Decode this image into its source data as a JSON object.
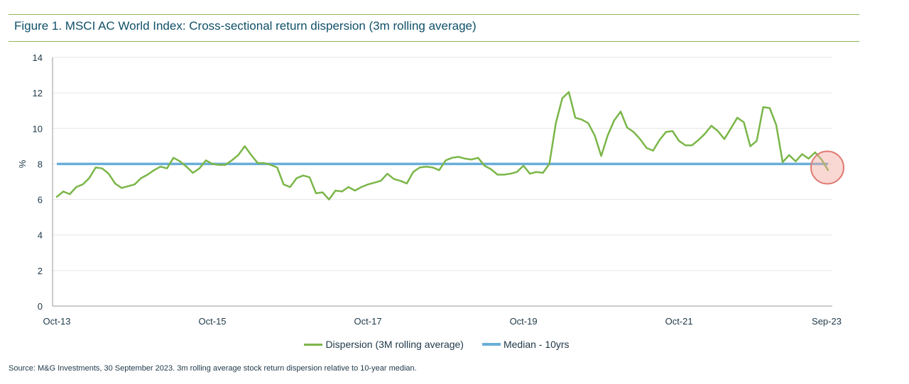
{
  "figure_title": "Figure 1. MSCI AC World Index: Cross-sectional return dispersion (3m rolling average)",
  "source_note": "Source:  M&G Investments, 30 September  2023. 3m rolling average stock return dispersion relative to 10-year median.",
  "colors": {
    "dispersion": "#7ab648",
    "median": "#6aaed8",
    "rule": "#8dbb5a",
    "highlight_circle": "#e07a72",
    "title": "#0f5068"
  },
  "chart_data": {
    "type": "line",
    "title": "Figure 1. MSCI AC World Index: Cross-sectional return dispersion (3m rolling average)",
    "xlabel": "",
    "ylabel": "%",
    "ylim": [
      0,
      14
    ],
    "y_ticks": [
      0,
      2,
      4,
      6,
      8,
      10,
      12,
      14
    ],
    "x_tick_labels": [
      "Oct-13",
      "Oct-15",
      "Oct-17",
      "Oct-19",
      "Oct-21",
      "Sep-23"
    ],
    "grid": "horizontal",
    "legend_position": "bottom",
    "x_start": "Oct-13",
    "x_end": "Sep-23",
    "frequency": "monthly",
    "series": [
      {
        "name": "Dispersion (3M rolling average)",
        "values": [
          6.15,
          6.45,
          6.3,
          6.7,
          6.85,
          7.2,
          7.8,
          7.75,
          7.45,
          6.9,
          6.65,
          6.75,
          6.85,
          7.2,
          7.4,
          7.65,
          7.85,
          7.75,
          8.35,
          8.15,
          7.85,
          7.5,
          7.75,
          8.2,
          8.0,
          7.95,
          7.95,
          8.2,
          8.5,
          9.0,
          8.5,
          8.05,
          8.05,
          7.95,
          7.8,
          6.85,
          6.7,
          7.2,
          7.35,
          7.25,
          6.35,
          6.4,
          6.0,
          6.5,
          6.45,
          6.7,
          6.5,
          6.7,
          6.85,
          6.95,
          7.05,
          7.45,
          7.15,
          7.05,
          6.9,
          7.55,
          7.8,
          7.85,
          7.8,
          7.65,
          8.2,
          8.35,
          8.4,
          8.3,
          8.25,
          8.35,
          7.9,
          7.7,
          7.4,
          7.4,
          7.45,
          7.55,
          7.9,
          7.45,
          7.55,
          7.5,
          8.0,
          10.3,
          11.7,
          12.05,
          10.6,
          10.5,
          10.3,
          9.6,
          8.45,
          9.6,
          10.45,
          10.95,
          10.05,
          9.8,
          9.4,
          8.9,
          8.75,
          9.35,
          9.8,
          9.85,
          9.3,
          9.05,
          9.05,
          9.35,
          9.7,
          10.15,
          9.85,
          9.4,
          10.0,
          10.6,
          10.35,
          9.0,
          9.3,
          11.2,
          11.15,
          10.2,
          8.1,
          8.5,
          8.15,
          8.55,
          8.3,
          8.65,
          8.25,
          7.65
        ]
      },
      {
        "name": "Median - 10yrs",
        "constant": 8.0
      }
    ],
    "annotations": [
      {
        "type": "circle",
        "at": "Sep-23",
        "value": 7.8
      }
    ]
  }
}
